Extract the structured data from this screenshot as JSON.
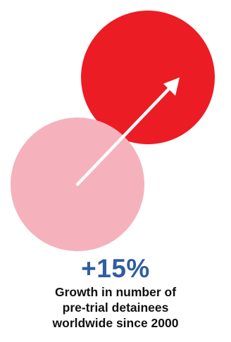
{
  "stat": {
    "value": "+15%",
    "caption_lines": [
      "Growth in number of",
      "pre-trial detainees",
      "worldwide since 2000"
    ]
  },
  "colors": {
    "large_circle": "#ec1c24",
    "small_circle": "#f5b2bc",
    "arrow": "#ffffff",
    "value_text": "#2f5d9e",
    "caption_text": "#111111"
  },
  "icons": {
    "growth_graphic": "two-overlapping-circles-with-arrow-icon"
  }
}
